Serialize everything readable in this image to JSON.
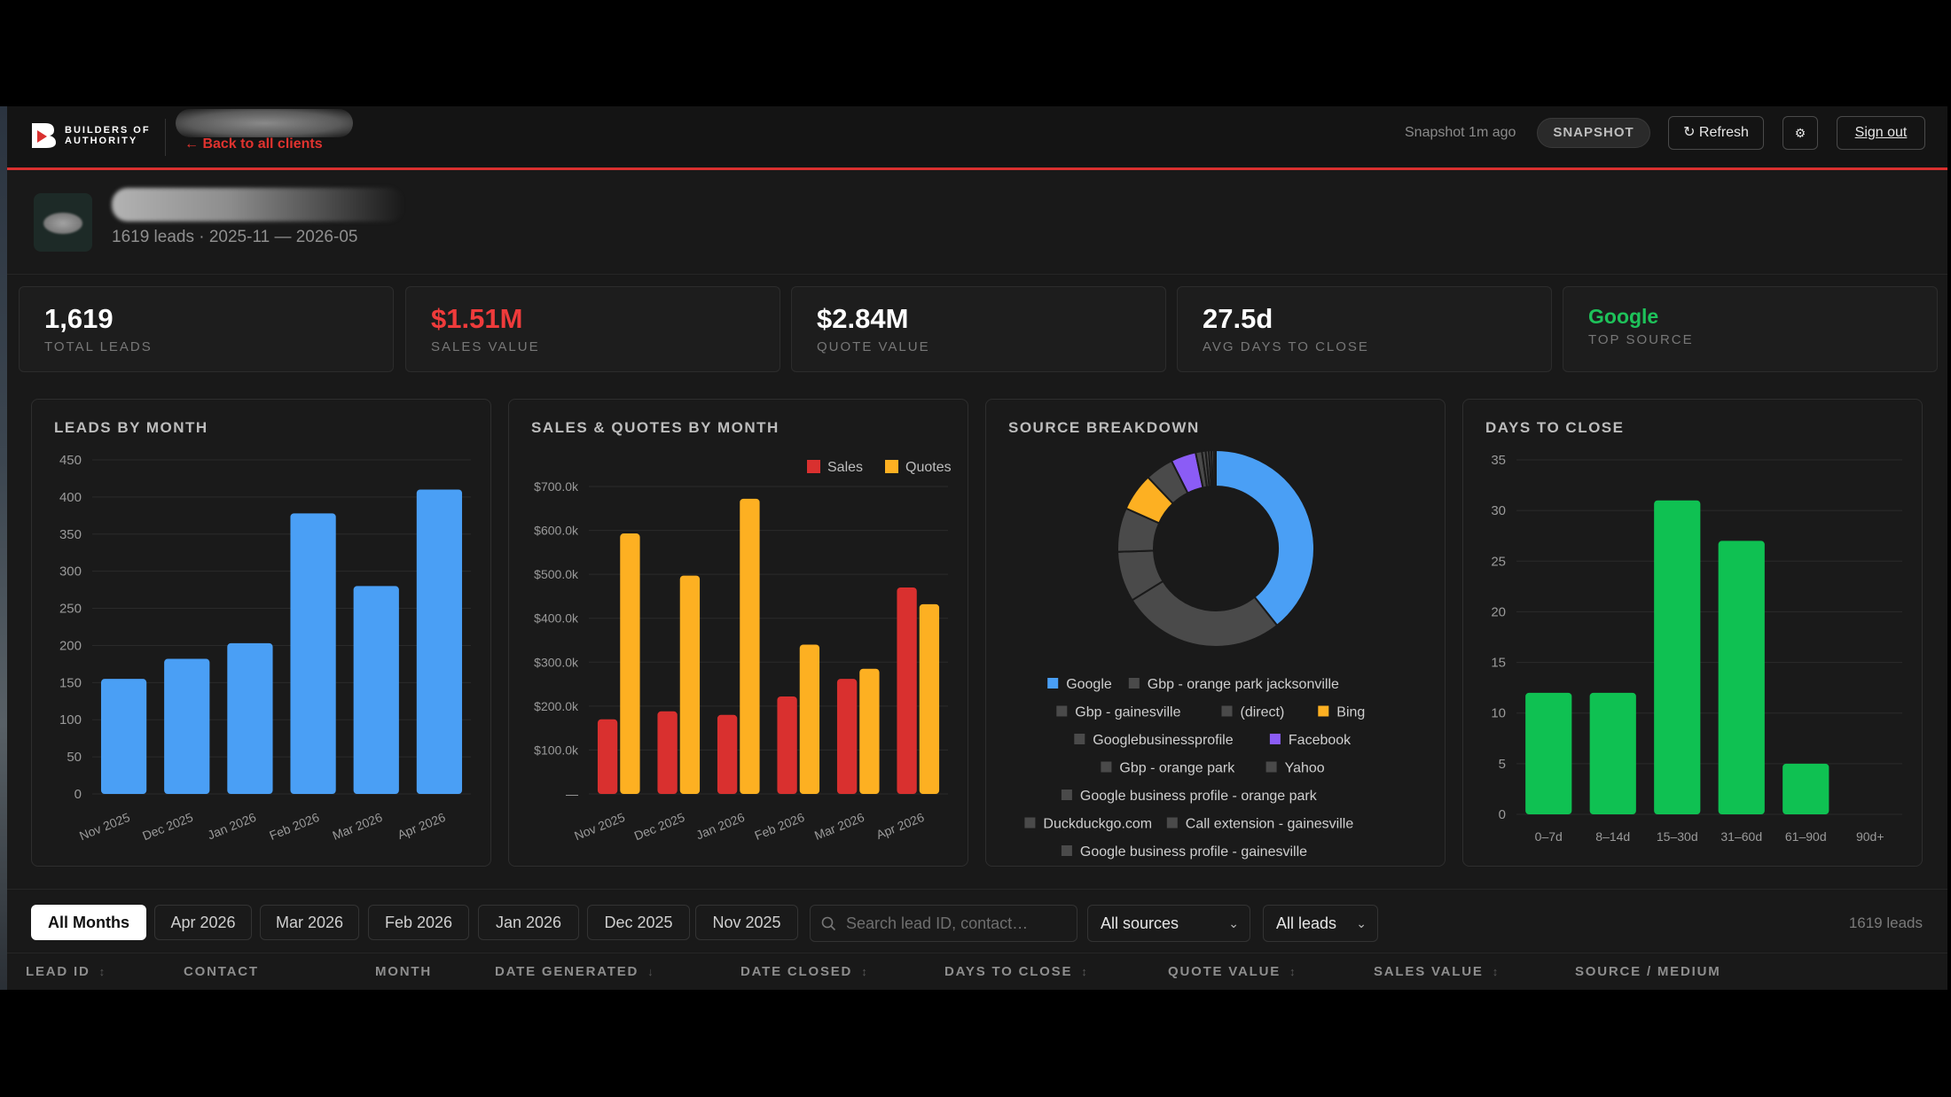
{
  "header": {
    "logo_text": "BUILDERS OF\nAUTHORITY",
    "back_link": "← Back to all clients",
    "snapshot_text": "Snapshot 1m ago",
    "snapshot_badge": "SNAPSHOT",
    "refresh_label": "↻ Refresh",
    "settings_icon": "gear-icon",
    "settings_glyph": "⚙",
    "sign_out_label": "Sign out",
    "accent_color": "#d9302f"
  },
  "client": {
    "subtitle": "1619 leads · 2025-11 — 2026-05"
  },
  "kpis": [
    {
      "value": "1,619",
      "label": "TOTAL LEADS"
    },
    {
      "value": "$1.51M",
      "label": "SALES VALUE"
    },
    {
      "value": "$2.84M",
      "label": "QUOTE VALUE"
    },
    {
      "value": "27.5d",
      "label": "AVG DAYS TO CLOSE"
    },
    {
      "value": "Google",
      "label": "TOP SOURCE"
    }
  ],
  "panels": {
    "leads_title": "LEADS BY MONTH",
    "sales_title": "SALES & QUOTES BY MONTH",
    "source_title": "SOURCE BREAKDOWN",
    "days_title": "DAYS TO CLOSE"
  },
  "chart_data": [
    {
      "type": "bar",
      "title": "LEADS BY MONTH",
      "categories": [
        "Nov 2025",
        "Dec 2025",
        "Jan 2026",
        "Feb 2026",
        "Mar 2026",
        "Apr 2026"
      ],
      "values": [
        155,
        182,
        203,
        378,
        280,
        410
      ],
      "yticks": [
        "0",
        "50",
        "100",
        "150",
        "200",
        "250",
        "300",
        "350",
        "400",
        "450"
      ],
      "ylim": [
        0,
        450
      ],
      "color": "#4a9ff5",
      "grid": true
    },
    {
      "type": "bar",
      "title": "SALES & QUOTES BY MONTH",
      "categories": [
        "Nov 2025",
        "Dec 2025",
        "Jan 2026",
        "Feb 2026",
        "Mar 2026",
        "Apr 2026"
      ],
      "series": [
        {
          "name": "Sales",
          "color": "#d9302f",
          "values": [
            170000,
            188000,
            180000,
            222000,
            262000,
            470000
          ]
        },
        {
          "name": "Quotes",
          "color": "#fdb022",
          "values": [
            593000,
            497000,
            672000,
            340000,
            285000,
            432000
          ]
        }
      ],
      "yticks": [
        "—",
        "$100.0k",
        "$200.0k",
        "$300.0k",
        "$400.0k",
        "$500.0k",
        "$600.0k",
        "$700.0k"
      ],
      "ylim": [
        0,
        700000
      ],
      "legend": "top-right",
      "grid": true
    },
    {
      "type": "pie",
      "title": "SOURCE BREAKDOWN",
      "donut": true,
      "slices": [
        {
          "label": "Google",
          "color": "#4a9ff5",
          "value": 38
        },
        {
          "label": "Gbp - orange park jacksonville",
          "color": "#4a4a4a",
          "value": 26
        },
        {
          "label": "Gbp - gainesville",
          "color": "#4a4a4a",
          "value": 8
        },
        {
          "label": "(direct)",
          "color": "#4a4a4a",
          "value": 7
        },
        {
          "label": "Bing",
          "color": "#fdb022",
          "value": 6
        },
        {
          "label": "Googlebusinessprofile",
          "color": "#4a4a4a",
          "value": 4.5
        },
        {
          "label": "Facebook",
          "color": "#8b5cf6",
          "value": 4
        },
        {
          "label": "Gbp - orange park",
          "color": "#4a4a4a",
          "value": 1
        },
        {
          "label": "Yahoo",
          "color": "#4a4a4a",
          "value": 0.6
        },
        {
          "label": "Google business profile - orange park",
          "color": "#4a4a4a",
          "value": 0.5
        },
        {
          "label": "Duckduckgo.com",
          "color": "#4a4a4a",
          "value": 0.4
        },
        {
          "label": "Call extension - gainesville",
          "color": "#4a4a4a",
          "value": 0.4
        },
        {
          "label": "Google business profile - gainesville",
          "color": "#4a4a4a",
          "value": 0.3
        }
      ],
      "legend": "bottom"
    },
    {
      "type": "bar",
      "title": "DAYS TO CLOSE",
      "categories": [
        "0–7d",
        "8–14d",
        "15–30d",
        "31–60d",
        "61–90d",
        "90d+"
      ],
      "values": [
        12,
        12,
        31,
        27,
        5,
        0
      ],
      "yticks": [
        "0",
        "5",
        "10",
        "15",
        "20",
        "25",
        "30",
        "35"
      ],
      "ylim": [
        0,
        35
      ],
      "color": "#0fc152",
      "grid": true
    }
  ],
  "filters": {
    "month_pills": [
      "All Months",
      "Apr 2026",
      "Mar 2026",
      "Feb 2026",
      "Jan 2026",
      "Dec 2025",
      "Nov 2025"
    ],
    "active_pill": "All Months",
    "search_placeholder": "Search lead ID, contact…",
    "source_select": "All sources",
    "lead_select": "All leads",
    "lead_count": "1619 leads"
  },
  "table": {
    "columns": [
      "LEAD ID",
      "CONTACT",
      "MONTH",
      "DATE GENERATED",
      "DATE CLOSED",
      "DAYS TO CLOSE",
      "QUOTE VALUE",
      "SALES VALUE",
      "SOURCE / MEDIUM"
    ],
    "sort_glyphs": [
      "↕",
      "",
      "",
      "↓",
      "↕",
      "↕",
      "↕",
      "↕",
      ""
    ]
  }
}
